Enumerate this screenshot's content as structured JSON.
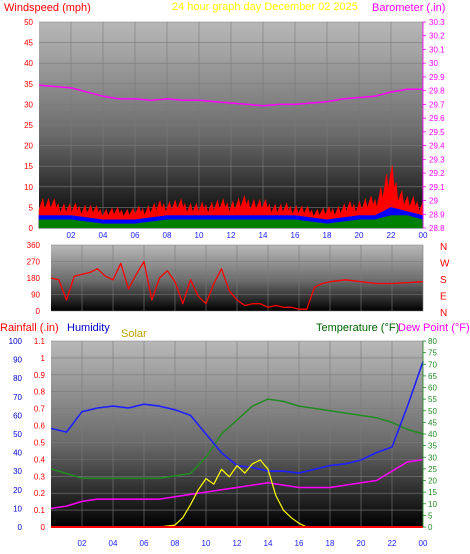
{
  "colors": {
    "wind": "#ff0000",
    "gust": "#ff0000",
    "avg": "#0000ff",
    "low": "#008000",
    "baro": "#ff00ff",
    "title": "#ffff00",
    "direction": "#ff0000",
    "rain": "#ff0000",
    "humidity": "#2020ff",
    "solar": "#ffff00",
    "solar_label": "#b8a000",
    "temperature": "#228b22",
    "temp_label": "#006400",
    "dew": "#ff00ff",
    "grid_line": "#7a7a7a"
  },
  "header": {
    "wind_label": "Windspeed (mph)",
    "title": "24 hour graph day   December 02 2025",
    "baro_label": "Barometer (.in)"
  },
  "bottom_header": {
    "rain_label": "Rainfall (.in)",
    "humidity_label": "Humidity",
    "solar_label": "Solar",
    "temp_label": "Temperature (°F)",
    "dew_label": "Dew Point (°F)"
  },
  "chart_data": [
    {
      "type": "line",
      "name": "wind-barometer",
      "x_ticks": [
        "02",
        "04",
        "06",
        "08",
        "10",
        "12",
        "14",
        "16",
        "18",
        "20",
        "22",
        "00"
      ],
      "x_range": [
        0,
        24
      ],
      "y_left": {
        "label": "Windspeed (mph)",
        "range": [
          0,
          50
        ],
        "ticks": [
          "0",
          "5",
          "10",
          "15",
          "20",
          "25",
          "30",
          "35",
          "40",
          "45",
          "50"
        ]
      },
      "y_right": {
        "label": "Barometer (.in)",
        "range": [
          28.8,
          30.3
        ],
        "ticks": [
          "28.8",
          "28.9",
          "29",
          "29.1",
          "29.2",
          "29.3",
          "29.4",
          "29.5",
          "29.6",
          "29.7",
          "29.8",
          "29.9",
          "30",
          "30.1",
          "30.2",
          "30.3"
        ]
      },
      "barometer": {
        "x": [
          0,
          1,
          2,
          3,
          4,
          5,
          6,
          7,
          8,
          9,
          10,
          11,
          12,
          13,
          14,
          15,
          16,
          17,
          18,
          19,
          20,
          21,
          22,
          23,
          24
        ],
        "y": [
          29.84,
          29.83,
          29.82,
          29.79,
          29.76,
          29.74,
          29.74,
          29.73,
          29.74,
          29.73,
          29.73,
          29.72,
          29.71,
          29.7,
          29.69,
          29.7,
          29.7,
          29.71,
          29.72,
          29.74,
          29.75,
          29.76,
          29.79,
          29.81,
          29.81
        ]
      },
      "gust_max": {
        "x": [
          0,
          1,
          2,
          3,
          4,
          5,
          6,
          7,
          8,
          9,
          10,
          11,
          12,
          13,
          14,
          15,
          16,
          17,
          18,
          19,
          20,
          21,
          21.5,
          22,
          22.5,
          23,
          24
        ],
        "y": [
          8,
          7,
          6,
          6,
          5,
          5,
          5,
          6,
          7,
          7,
          6,
          7,
          7,
          8,
          7,
          6,
          6,
          5,
          5,
          6,
          7,
          8,
          12,
          16,
          11,
          8,
          7
        ]
      },
      "wind_avg": {
        "x": [
          0,
          2,
          4,
          6,
          8,
          10,
          12,
          14,
          16,
          18,
          20,
          21,
          22,
          23,
          24
        ],
        "y": [
          3,
          3,
          2,
          2,
          3,
          3,
          3,
          3,
          3,
          2,
          3,
          3,
          5,
          4,
          3
        ]
      },
      "wind_low": {
        "x": [
          0,
          2,
          4,
          6,
          8,
          10,
          12,
          14,
          16,
          18,
          20,
          21,
          22,
          23,
          24
        ],
        "y": [
          2,
          2,
          1,
          1,
          2,
          2,
          2,
          2,
          2,
          1,
          2,
          2,
          3,
          3,
          2
        ]
      }
    },
    {
      "type": "scatter",
      "name": "wind-direction",
      "x_ticks": [
        "02",
        "04",
        "06",
        "08",
        "10",
        "12",
        "14",
        "16",
        "18",
        "20",
        "22",
        "00"
      ],
      "x_range": [
        0,
        24
      ],
      "y_left": {
        "range": [
          0,
          360
        ],
        "ticks": [
          "0",
          "90",
          "180",
          "270",
          "360"
        ]
      },
      "y_right_labels": [
        "N",
        "W",
        "S",
        "E",
        "N"
      ],
      "direction": {
        "x": [
          0,
          0.5,
          1,
          1.5,
          2,
          2.5,
          3,
          3.5,
          4,
          4.5,
          5,
          5.5,
          6,
          6.5,
          7,
          7.5,
          8,
          8.5,
          9,
          9.5,
          10,
          10.5,
          11,
          11.5,
          12,
          12.5,
          13,
          13.5,
          14,
          14.5,
          15,
          15.5,
          16,
          16.5,
          17,
          17.5,
          18,
          19,
          20,
          21,
          22,
          23,
          24
        ],
        "y": [
          180,
          170,
          60,
          190,
          200,
          210,
          230,
          190,
          170,
          260,
          120,
          200,
          270,
          60,
          180,
          220,
          160,
          40,
          170,
          80,
          40,
          150,
          230,
          110,
          60,
          30,
          40,
          40,
          20,
          30,
          20,
          20,
          10,
          10,
          130,
          150,
          160,
          170,
          160,
          150,
          150,
          155,
          160
        ]
      }
    },
    {
      "type": "line",
      "name": "rain-humidity-solar-temperature",
      "x_ticks": [
        "02",
        "04",
        "06",
        "08",
        "10",
        "12",
        "14",
        "16",
        "18",
        "20",
        "22",
        "00"
      ],
      "x_range": [
        0,
        24
      ],
      "y_left_pct": {
        "range": [
          0,
          100
        ],
        "ticks": [
          "0",
          "10",
          "20",
          "30",
          "40",
          "50",
          "60",
          "70",
          "80",
          "90",
          "100"
        ]
      },
      "y_left_rain": {
        "range": [
          0,
          1.1
        ],
        "ticks": [
          "0",
          "0.1",
          "0.2",
          "0.3",
          "0.4",
          "0.5",
          "0.6",
          "0.7",
          "0.8",
          "0.9",
          "1",
          "1.1"
        ]
      },
      "y_right": {
        "range": [
          0,
          80
        ],
        "ticks": [
          "0",
          "5",
          "10",
          "15",
          "20",
          "25",
          "30",
          "35",
          "40",
          "45",
          "50",
          "55",
          "60",
          "65",
          "70",
          "75",
          "80"
        ]
      },
      "humidity": {
        "x": [
          0,
          1,
          2,
          3,
          4,
          5,
          6,
          7,
          8,
          9,
          10,
          11,
          12,
          13,
          14,
          15,
          16,
          17,
          18,
          19,
          20,
          21,
          22,
          23,
          24
        ],
        "y": [
          53,
          51,
          62,
          64,
          65,
          64,
          66,
          65,
          63,
          60,
          50,
          40,
          33,
          32,
          30,
          30,
          29,
          31,
          33,
          34,
          36,
          40,
          43,
          65,
          89
        ]
      },
      "temperature": {
        "x": [
          0,
          1,
          2,
          3,
          4,
          5,
          6,
          7,
          8,
          9,
          10,
          11,
          12,
          13,
          14,
          15,
          16,
          17,
          18,
          19,
          20,
          21,
          22,
          23,
          24
        ],
        "y": [
          25,
          23,
          21,
          21,
          21,
          21,
          21,
          21,
          22,
          23,
          30,
          40,
          46,
          52,
          55,
          54,
          52,
          51,
          50,
          49,
          48,
          47,
          45,
          42,
          40
        ]
      },
      "dew_point": {
        "x": [
          0,
          1,
          2,
          3,
          4,
          5,
          6,
          7,
          8,
          9,
          10,
          11,
          12,
          13,
          14,
          15,
          16,
          17,
          18,
          19,
          20,
          21,
          22,
          23,
          24
        ],
        "y": [
          8,
          9,
          11,
          12,
          12,
          12,
          12,
          12,
          13,
          14,
          15,
          16,
          17,
          18,
          19,
          18,
          17,
          17,
          17,
          18,
          19,
          20,
          24,
          28,
          29
        ]
      },
      "solar": {
        "x": [
          6.5,
          7,
          8,
          8.5,
          9,
          9.5,
          10,
          10.5,
          11,
          11.5,
          12,
          12.5,
          13,
          13.5,
          14,
          14.5,
          15,
          15.5,
          16,
          16.5,
          17,
          18,
          24
        ],
        "y": [
          0,
          0,
          1,
          5,
          12,
          20,
          26,
          23,
          31,
          27,
          33,
          29,
          34,
          36,
          31,
          17,
          9,
          5,
          2,
          0,
          0,
          0,
          0
        ]
      },
      "rain": {
        "x": [
          0,
          24
        ],
        "y": [
          0,
          0
        ]
      }
    }
  ]
}
